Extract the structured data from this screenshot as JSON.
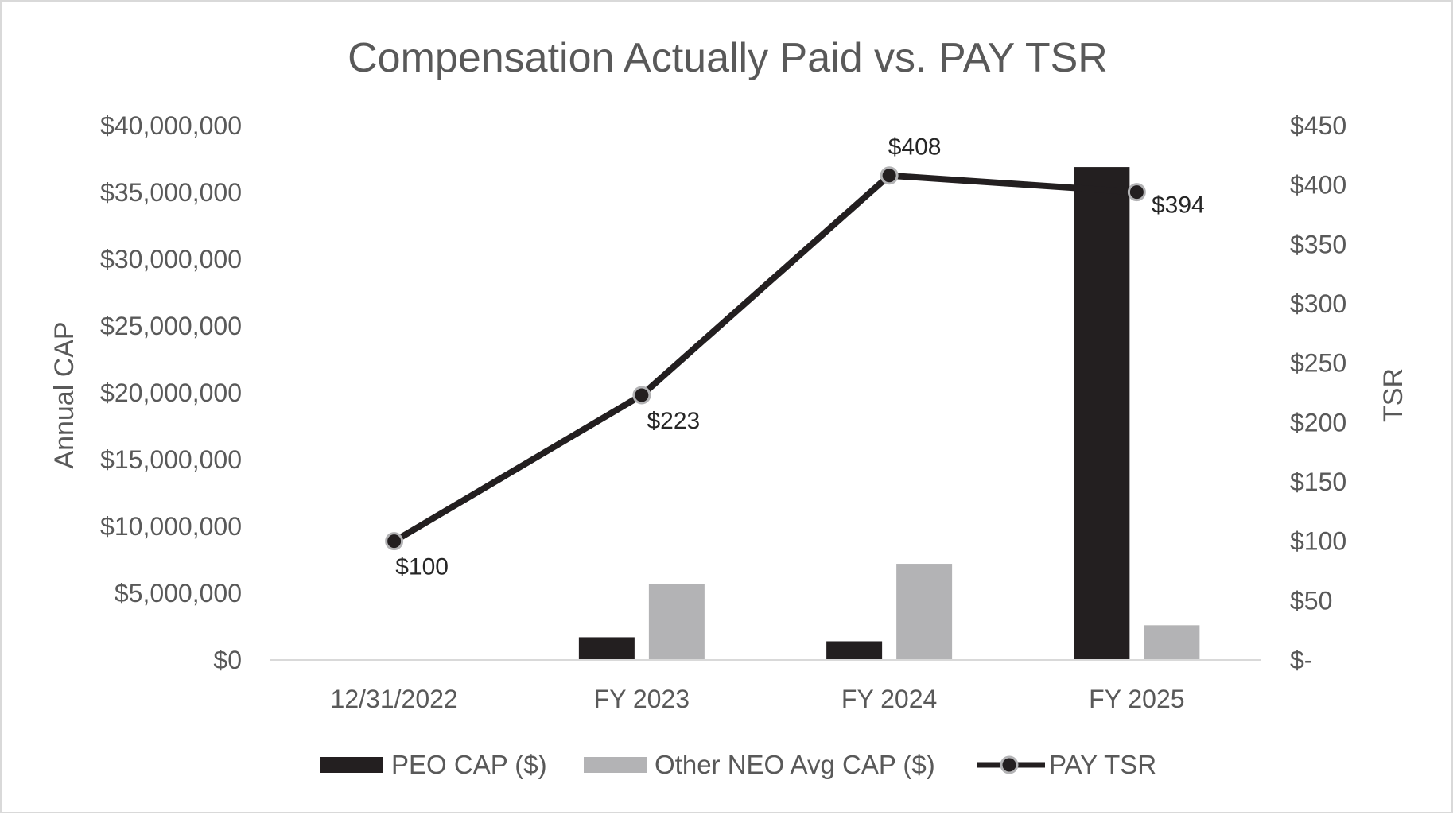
{
  "chart_data": {
    "type": "bar",
    "title": "Compensation Actually Paid vs. PAY TSR",
    "categories": [
      "12/31/2022",
      "FY 2023",
      "FY 2024",
      "FY 2025"
    ],
    "y_left": {
      "label": "Annual CAP",
      "min": 0,
      "max": 40000000,
      "step": 5000000,
      "ticks": [
        "$0",
        "$5,000,000",
        "$10,000,000",
        "$15,000,000",
        "$20,000,000",
        "$25,000,000",
        "$30,000,000",
        "$35,000,000",
        "$40,000,000"
      ]
    },
    "y_right": {
      "label": "TSR",
      "min": 0,
      "max": 450,
      "step": 50,
      "ticks": [
        "$-",
        "$50",
        "$100",
        "$150",
        "$200",
        "$250",
        "$300",
        "$350",
        "$400",
        "$450"
      ]
    },
    "series": [
      {
        "name": "PEO CAP ($)",
        "type": "bar",
        "axis": "left",
        "color": "#231f20",
        "values": [
          null,
          1700000,
          1400000,
          36900000
        ]
      },
      {
        "name": "Other NEO Avg CAP ($)",
        "type": "bar",
        "axis": "left",
        "color": "#b3b3b5",
        "values": [
          null,
          5700000,
          7200000,
          2600000
        ]
      },
      {
        "name": "PAY TSR",
        "type": "line",
        "axis": "right",
        "color": "#231f20",
        "values": [
          100,
          223,
          408,
          394
        ],
        "labels": [
          "$100",
          "$223",
          "$408",
          "$394"
        ]
      }
    ],
    "legend_position": "bottom",
    "grid": false
  }
}
